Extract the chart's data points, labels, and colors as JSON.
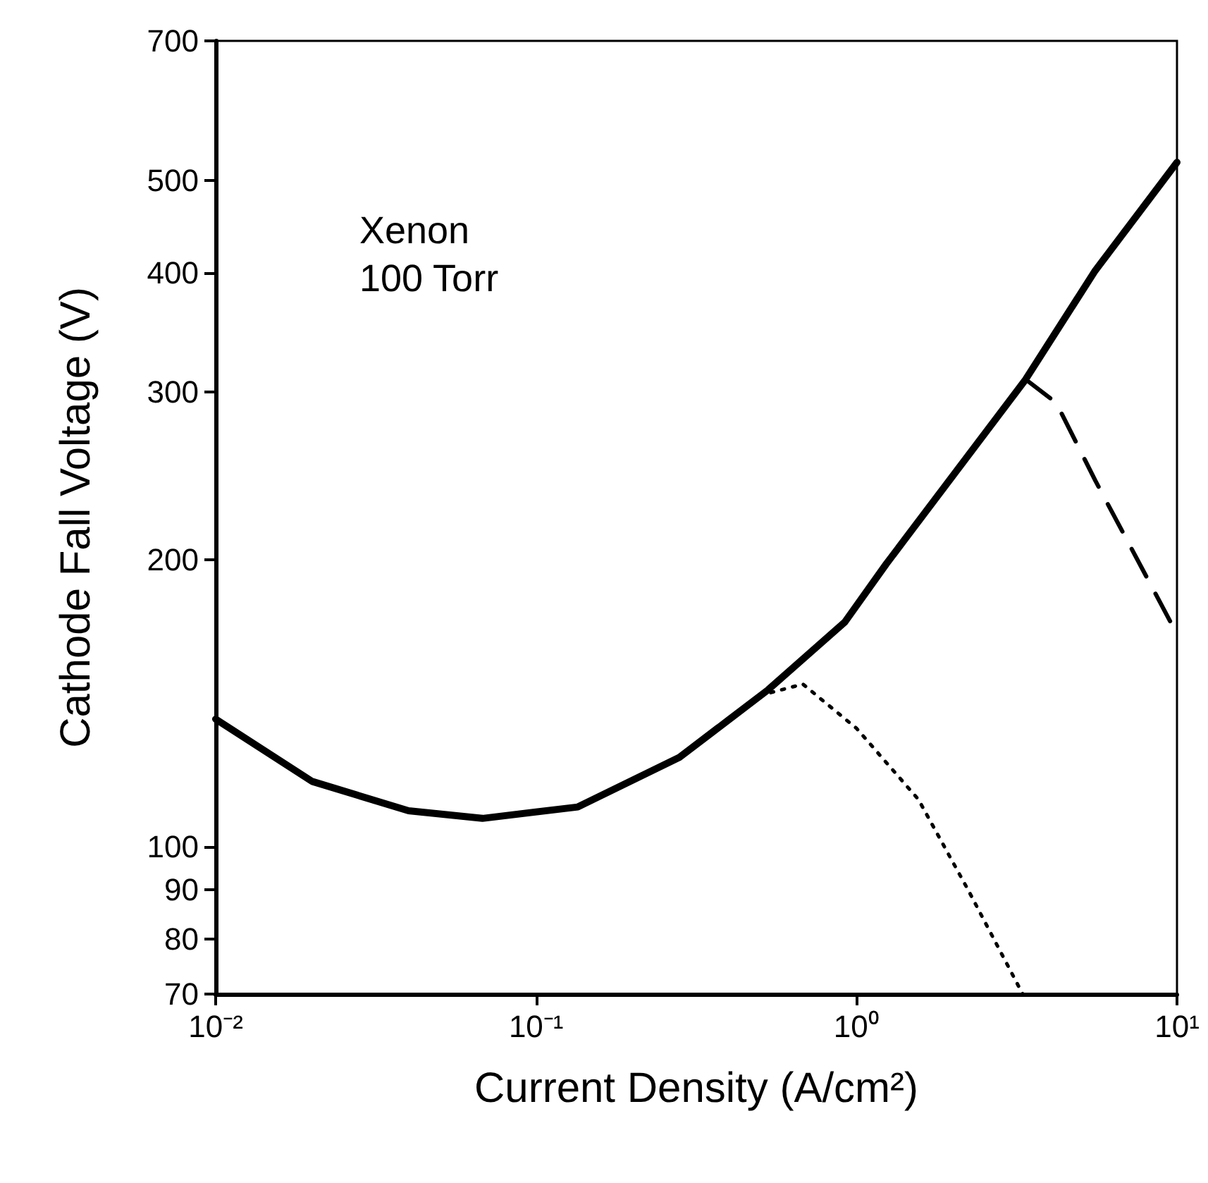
{
  "chart_data": {
    "type": "line",
    "xlabel": "Current Density (A/cm²)",
    "ylabel": "Cathode Fall Voltage (V)",
    "annotations": [
      "Xenon",
      "100 Torr"
    ],
    "log": "xy",
    "grid": false,
    "marker": "none",
    "xlim": [
      0.01,
      10
    ],
    "xticks": [
      {
        "value": 0.01,
        "label": "10⁻²"
      },
      {
        "value": 0.1,
        "label": "10⁻¹"
      },
      {
        "value": 1,
        "label": "10⁰"
      },
      {
        "value": 10,
        "label": "10¹"
      }
    ],
    "ylim": [
      70,
      700
    ],
    "yticks": [
      70,
      80,
      90,
      100,
      200,
      300,
      400,
      500,
      700
    ],
    "series": [
      {
        "color": "#000000",
        "line_style": "solid",
        "x": [
          0.01,
          0.02,
          0.04,
          0.068,
          0.135,
          0.28,
          0.53,
          0.92,
          1.24,
          3.37,
          5.56,
          10
        ],
        "values": [
          136,
          117,
          109,
          107,
          110,
          124,
          146,
          172,
          198,
          309,
          402,
          522
        ]
      },
      {
        "color": "#000000",
        "line_style": "dashed",
        "x": [
          3.37,
          4.2,
          5.56,
          10
        ],
        "values": [
          309,
          292,
          242,
          167
        ]
      },
      {
        "color": "#000000",
        "line_style": "dotted",
        "x": [
          0.54,
          0.68,
          1.0,
          1.56,
          2.23,
          3.3
        ],
        "values": [
          145,
          148,
          133,
          112,
          90,
          70
        ]
      }
    ]
  }
}
